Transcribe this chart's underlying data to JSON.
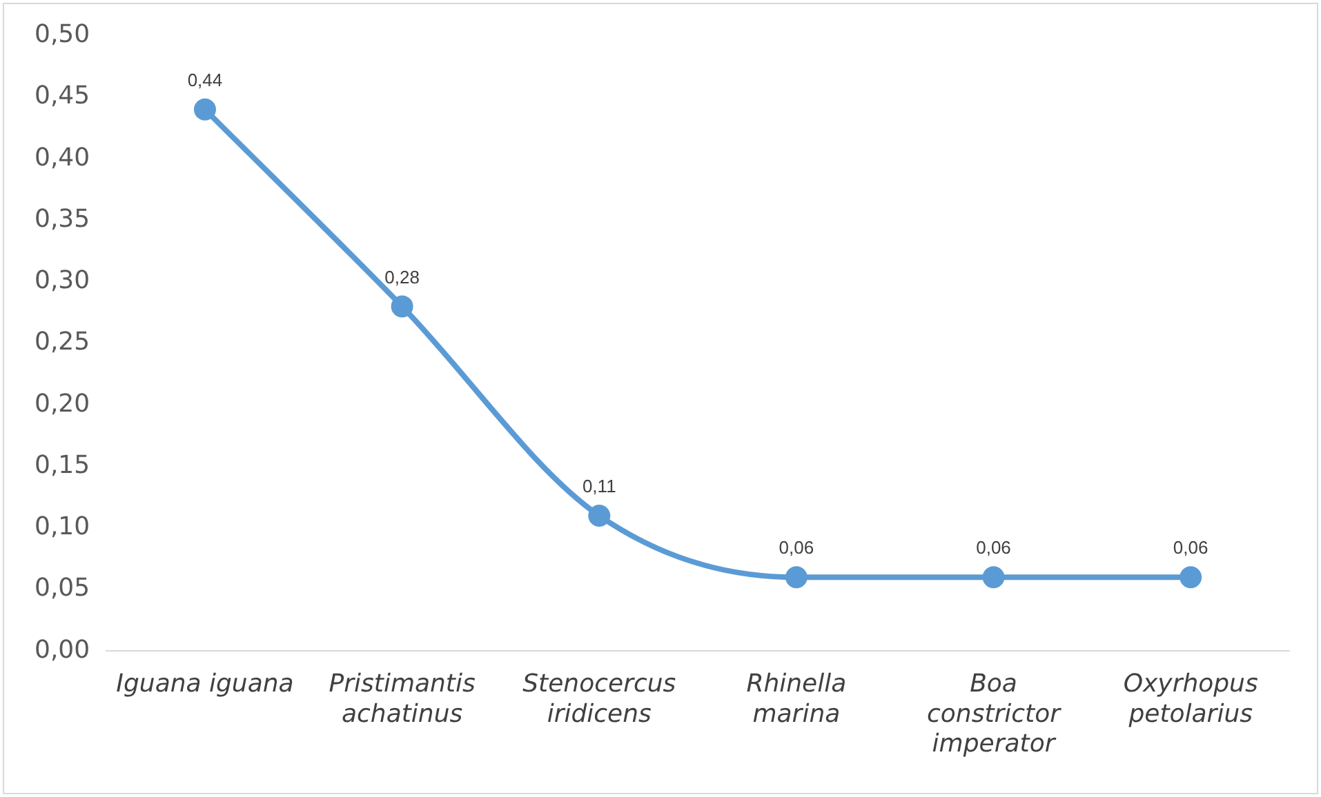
{
  "chart_data": {
    "type": "line",
    "categories": [
      "Iguana iguana",
      "Pristimantis achatinus",
      "Stenocercus iridicens",
      "Rhinella marina",
      "Boa constrictor imperator",
      "Oxyrhopus petolarius"
    ],
    "series": [
      {
        "color": "#5b9bd5",
        "values": [
          0.44,
          0.28,
          0.11,
          0.06,
          0.06,
          0.06
        ],
        "value_labels": [
          "0,44",
          "0,28",
          "0,11",
          "0,06",
          "0,06",
          "0,06"
        ]
      }
    ],
    "ylim": [
      0,
      0.5
    ],
    "yticks": [
      {
        "value": 0,
        "label": "0,00"
      },
      {
        "value": 0.05,
        "label": "0,05"
      },
      {
        "value": 0.1,
        "label": "0,10"
      },
      {
        "value": 0.15,
        "label": "0,15"
      },
      {
        "value": 0.2,
        "label": "0,20"
      },
      {
        "value": 0.25,
        "label": "0,25"
      },
      {
        "value": 0.3,
        "label": "0,30"
      },
      {
        "value": 0.35,
        "label": "0,35"
      },
      {
        "value": 0.4,
        "label": "0,40"
      },
      {
        "value": 0.45,
        "label": "0,45"
      },
      {
        "value": 0.5,
        "label": "0,50"
      }
    ],
    "grid": false,
    "legend": false,
    "marker": "circle",
    "line_style": "solid"
  }
}
